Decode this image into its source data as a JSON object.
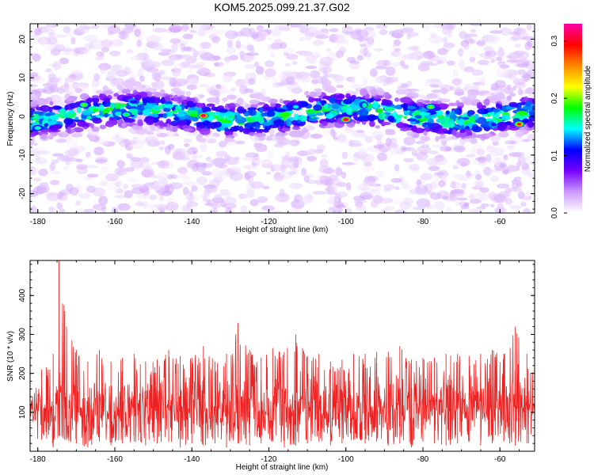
{
  "page": {
    "title": "KOM5.2025.099.21.37.G02"
  },
  "chart_data": [
    {
      "type": "heatmap",
      "title": "KOM5.2025.099.21.37.G02",
      "xlabel": "Height of straight line (km)",
      "ylabel": "Frequency (Hz)",
      "xlim": [
        -182,
        -51
      ],
      "ylim": [
        -25,
        24
      ],
      "x_ticks": [
        "-180",
        "-160",
        "-140",
        "-120",
        "-100",
        "-80",
        "-60"
      ],
      "x_tick_values": [
        -180,
        -160,
        -140,
        -120,
        -100,
        -80,
        -60
      ],
      "y_ticks": [
        "-20",
        "-10",
        "0",
        "10",
        "20"
      ],
      "y_tick_values": [
        -20,
        -10,
        0,
        10,
        20
      ],
      "colorbar": {
        "label": "Normalized spectral amplitude",
        "ticks": [
          "0.0",
          "0.1",
          "0.2",
          "0.3"
        ],
        "tick_values": [
          0.0,
          0.1,
          0.2,
          0.3
        ],
        "range": [
          0.0,
          0.33
        ],
        "colormap": [
          "#ffffff",
          "#cc99ff",
          "#7700ff",
          "#0000ff",
          "#00ffff",
          "#00ff00",
          "#ffff00",
          "#ff8800",
          "#ff0000",
          "#ff00aa"
        ]
      },
      "band": {
        "description_values": "energy concentrated near 0 Hz",
        "center_hz": 0.5,
        "halfwidth_hz": 4
      },
      "hot_spots": [
        {
          "x": -137,
          "y": 0.2,
          "value": 0.33
        },
        {
          "x": -100,
          "y": -0.8,
          "value": 0.33
        },
        {
          "x": -55,
          "y": -2.0,
          "value": 0.3
        },
        {
          "x": -168,
          "y": 3.0,
          "value": 0.2
        },
        {
          "x": -78,
          "y": 2.5,
          "value": 0.2
        },
        {
          "x": -157,
          "y": 0.5,
          "value": 0.18
        },
        {
          "x": -180,
          "y": -3.0,
          "value": 0.16
        },
        {
          "x": -113,
          "y": 2.5,
          "value": 0.15
        }
      ]
    },
    {
      "type": "line",
      "xlabel": "Height of straight line (km)",
      "ylabel": "SNR (10 * v/v)",
      "xlim": [
        -182,
        -51
      ],
      "ylim": [
        0,
        490
      ],
      "x_ticks": [
        "-180",
        "-160",
        "-140",
        "-120",
        "-100",
        "-80",
        "-60"
      ],
      "x_tick_values": [
        -180,
        -160,
        -140,
        -120,
        -100,
        -80,
        -60
      ],
      "y_ticks": [
        "100",
        "200",
        "300",
        "400"
      ],
      "y_tick_values": [
        100,
        200,
        300,
        400
      ],
      "series": [
        {
          "color": "#ee2222",
          "x": [
            -182,
            -179,
            -176,
            -174.5,
            -173,
            -170,
            -167,
            -164,
            -161,
            -158,
            -155,
            -152,
            -149,
            -146,
            -143,
            -140,
            -137,
            -134,
            -131,
            -128,
            -125,
            -122,
            -119,
            -116,
            -113,
            -110,
            -107,
            -104,
            -101,
            -98,
            -95,
            -92,
            -89,
            -86,
            -83,
            -80,
            -77,
            -74,
            -71,
            -68,
            -65,
            -62,
            -59,
            -56,
            -53,
            -51
          ],
          "y": [
            120,
            210,
            250,
            490,
            360,
            260,
            230,
            260,
            230,
            240,
            250,
            230,
            235,
            260,
            245,
            240,
            270,
            230,
            250,
            330,
            260,
            240,
            265,
            255,
            300,
            245,
            250,
            230,
            235,
            250,
            250,
            255,
            255,
            270,
            235,
            240,
            240,
            250,
            250,
            245,
            250,
            260,
            250,
            320,
            250,
            200
          ],
          "min": [
            20,
            30,
            10,
            40,
            30,
            20,
            10,
            25,
            15,
            20,
            25,
            15,
            20,
            25,
            10,
            20,
            15,
            20,
            10,
            20,
            15,
            20,
            25,
            10,
            15,
            20,
            25,
            15,
            20,
            30,
            20,
            25,
            15,
            20,
            10,
            25,
            20,
            15,
            20,
            25,
            15,
            20,
            25,
            15,
            20,
            20
          ],
          "mean": 110
        }
      ]
    }
  ]
}
